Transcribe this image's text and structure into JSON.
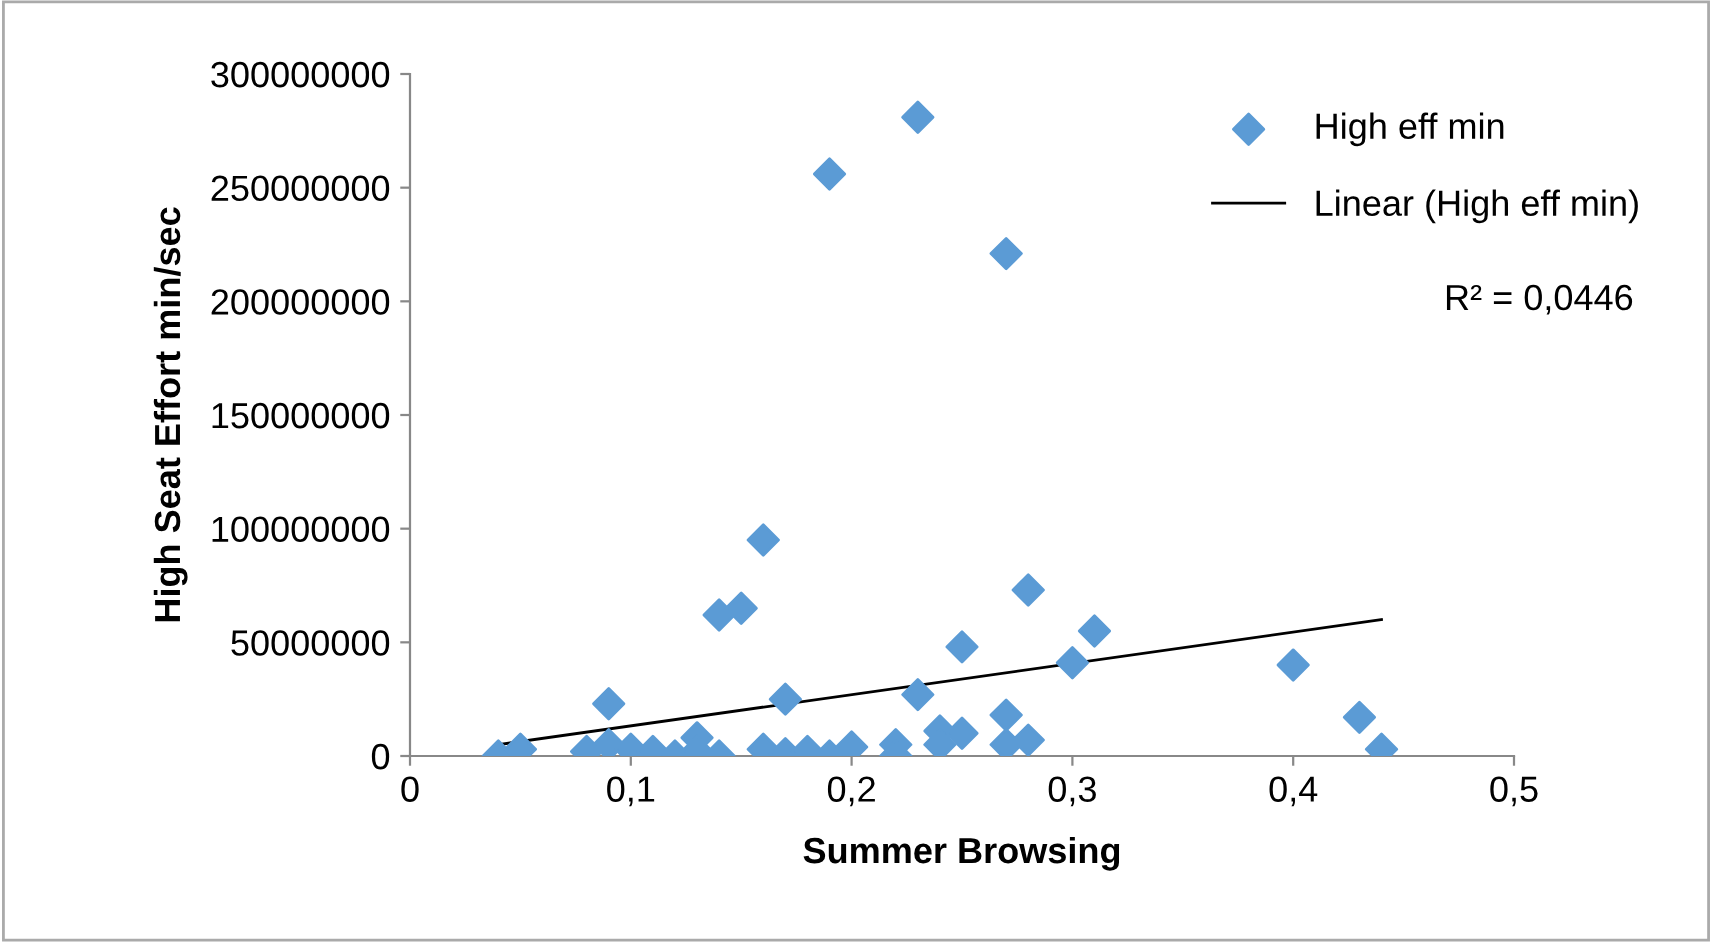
{
  "chart_data": {
    "type": "scatter",
    "xlabel": "Summer Browsing",
    "ylabel": "High Seat Effort min/sec",
    "series": [
      {
        "name": "High eff min",
        "color": "#5b9bd5",
        "marker": "diamond",
        "x": [
          0.04,
          0.05,
          0.08,
          0.09,
          0.09,
          0.1,
          0.11,
          0.12,
          0.13,
          0.13,
          0.14,
          0.14,
          0.15,
          0.16,
          0.16,
          0.17,
          0.17,
          0.18,
          0.19,
          0.19,
          0.2,
          0.22,
          0.22,
          0.23,
          0.23,
          0.24,
          0.24,
          0.25,
          0.25,
          0.27,
          0.27,
          0.27,
          0.28,
          0.28,
          0.3,
          0.31,
          0.4,
          0.43,
          0.44
        ],
        "values": [
          0,
          3000000,
          2000000,
          23000000,
          5000000,
          3000000,
          2000000,
          0,
          8000000,
          2000000,
          62000000,
          0,
          65000000,
          95000000,
          3000000,
          25000000,
          1000000,
          2000000,
          256000000,
          0,
          4000000,
          5000000,
          0,
          281000000,
          27000000,
          11000000,
          5000000,
          48000000,
          10000000,
          221000000,
          18000000,
          5000000,
          73000000,
          7000000,
          41000000,
          55000000,
          40000000,
          17000000,
          3000000
        ]
      },
      {
        "name": "Linear (High eff min)",
        "type": "line",
        "color": "#000000",
        "line_style": "solid",
        "x": [
          0.04,
          0.44
        ],
        "values": [
          5000000,
          60000000
        ]
      }
    ],
    "xlim": [
      0,
      0.5
    ],
    "xticks": [
      {
        "value": 0,
        "label": "0"
      },
      {
        "value": 0.1,
        "label": "0,1"
      },
      {
        "value": 0.2,
        "label": "0,2"
      },
      {
        "value": 0.3,
        "label": "0,3"
      },
      {
        "value": 0.4,
        "label": "0,4"
      },
      {
        "value": 0.5,
        "label": "0,5"
      }
    ],
    "ylim": [
      0,
      300000000
    ],
    "yticks": [
      0,
      50000000,
      100000000,
      150000000,
      200000000,
      250000000,
      300000000
    ],
    "annotations": [
      "R² = 0,0446"
    ],
    "legend": "top right",
    "grid": false
  }
}
